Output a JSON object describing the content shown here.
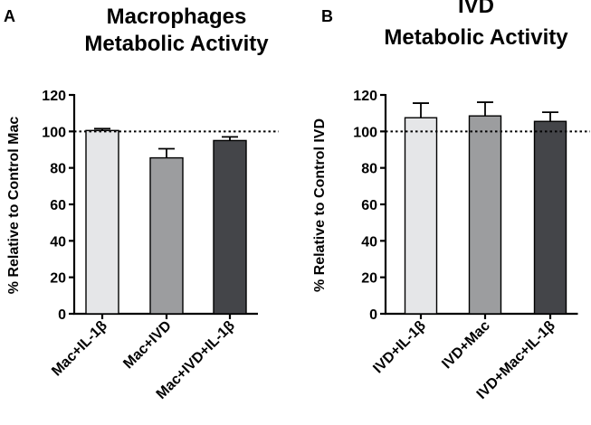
{
  "chart_data": [
    {
      "panel": "A",
      "type": "bar",
      "title_lines": [
        "Macrophages",
        "Metabolic Activity"
      ],
      "ylabel": "% Relative to Control Mac",
      "xlabel": "",
      "ylim": [
        0,
        120
      ],
      "yticks": [
        "0",
        "20",
        "40",
        "60",
        "80",
        "100",
        "120"
      ],
      "reference_line": 100,
      "categories": [
        "Mac+IL-1β",
        "Mac+IVD",
        "Mac+IVD+IL-1β"
      ],
      "values": [
        100.5,
        85.5,
        95
      ],
      "errors": [
        1.0,
        5.0,
        2.0
      ],
      "colors": [
        "#e5e6e8",
        "#9c9d9f",
        "#444549"
      ]
    },
    {
      "panel": "B",
      "type": "bar",
      "title_lines": [
        "IVD",
        "Metabolic Activity"
      ],
      "ylabel": "% Relative to Control IVD",
      "xlabel": "",
      "ylim": [
        0,
        120
      ],
      "yticks": [
        "0",
        "20",
        "40",
        "60",
        "80",
        "100",
        "120"
      ],
      "reference_line": 100,
      "categories": [
        "IVD+IL-1β",
        "IVD+Mac",
        "IVD+Mac+IL-1β"
      ],
      "values": [
        107.5,
        108.5,
        105.5
      ],
      "errors": [
        8.0,
        7.5,
        5.0
      ],
      "colors": [
        "#e5e6e8",
        "#9c9d9f",
        "#444549"
      ]
    }
  ]
}
